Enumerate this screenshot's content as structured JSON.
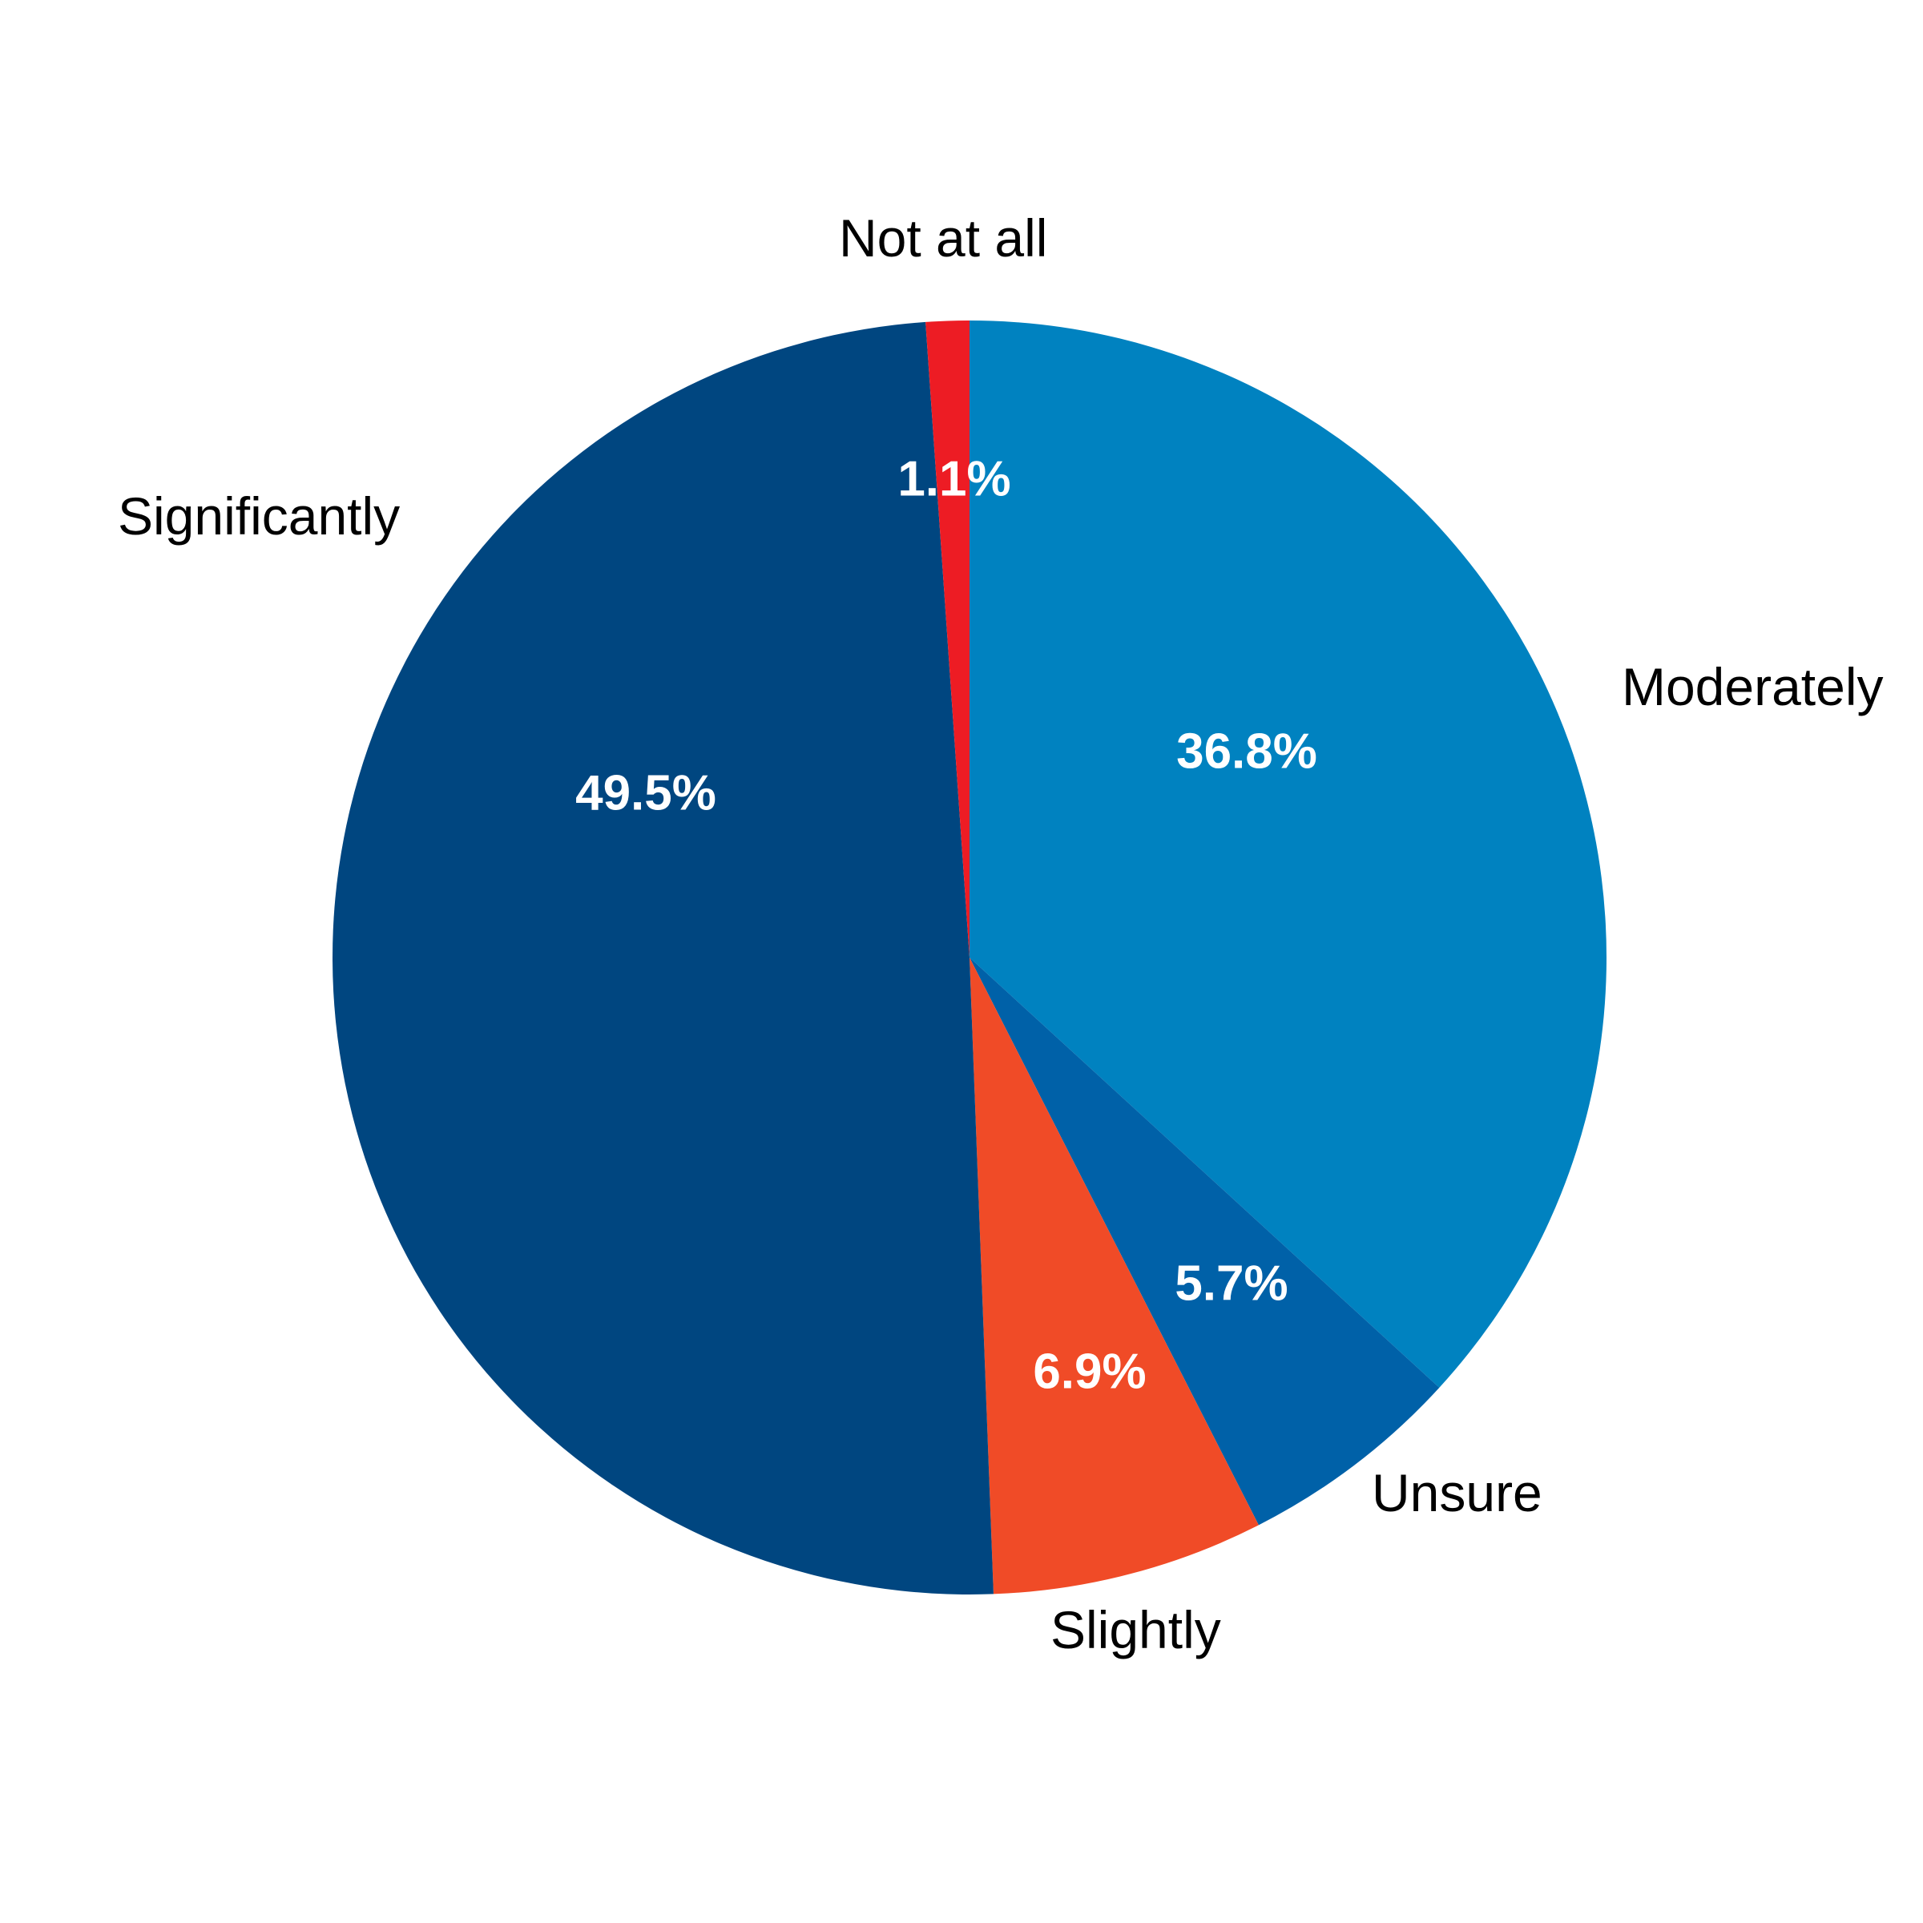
{
  "chart_data": {
    "type": "pie",
    "title": "",
    "start_angle_deg": 0,
    "direction": "clockwise",
    "legend": "none",
    "slices": [
      {
        "label": "Moderately",
        "value": 36.8,
        "value_label": "36.8%",
        "color": "#0082C0"
      },
      {
        "label": "Unsure",
        "value": 5.7,
        "value_label": "5.7%",
        "color": "#0061A8"
      },
      {
        "label": "Slightly",
        "value": 6.9,
        "value_label": "6.9%",
        "color": "#F04B27"
      },
      {
        "label": "Significantly",
        "value": 49.5,
        "value_label": "49.5%",
        "color": "#004680"
      },
      {
        "label": "Not at all",
        "value": 1.1,
        "value_label": "1.1%",
        "color": "#ED1C24"
      }
    ]
  }
}
